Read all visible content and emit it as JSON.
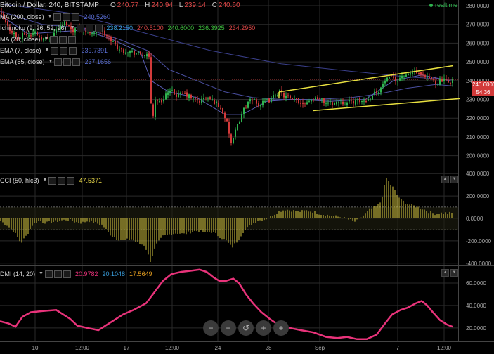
{
  "header": {
    "symbol": "Bitcoin / Dollar, 240, BITSTAMP",
    "o_label": "O",
    "o_value": "240.77",
    "h_label": "H",
    "h_value": "240.94",
    "l_label": "L",
    "l_value": "239.14",
    "c_label": "C",
    "c_value": "240.60",
    "realtime": "realtime"
  },
  "indicators": [
    {
      "name": "MA (200, close)",
      "values": [
        {
          "text": "240.5260",
          "color": "#5a6fd6"
        }
      ]
    },
    {
      "name": "Ichimoku (9, 26, 52, 26)",
      "values": [
        {
          "text": "238.2150",
          "color": "#3aa0e0"
        },
        {
          "text": "240.5100",
          "color": "#e04848"
        },
        {
          "text": "240.6000",
          "color": "#3fbf3f"
        },
        {
          "text": "236.3925",
          "color": "#3fbf3f"
        },
        {
          "text": "234.2950",
          "color": "#e04848"
        }
      ]
    },
    {
      "name": "MA (20, close)",
      "values": []
    },
    {
      "name": "EMA (7, close)",
      "values": [
        {
          "text": "239.7391",
          "color": "#5a6fd6"
        }
      ]
    },
    {
      "name": "EMA (55, close)",
      "values": [
        {
          "text": "237.1656",
          "color": "#5a6fd6"
        }
      ]
    }
  ],
  "cci": {
    "name": "CCI (50, hlc3)",
    "value": "47.5371",
    "value_color": "#e8d84a"
  },
  "dmi": {
    "name": "DMI (14, 20)",
    "values": [
      {
        "text": "20.9782",
        "color": "#e8337a"
      },
      {
        "text": "20.1048",
        "color": "#3aa0e0"
      },
      {
        "text": "17.5649",
        "color": "#e8a020"
      }
    ]
  },
  "price_marker": {
    "price": "240.6000",
    "countdown": "54:36"
  },
  "zoom_controls": [
    "−",
    "−",
    "↺",
    "+",
    "+"
  ],
  "colors": {
    "up": "#2fb44f",
    "down": "#d23a3a",
    "channel": "#e8e040",
    "ma": "#3a3f8a",
    "cci": "#d8c840",
    "dmi": "#e8337a",
    "grid": "#2a2a2a"
  },
  "chart_data": [
    {
      "type": "candlestick",
      "title": "Bitcoin / Dollar, 240, BITSTAMP",
      "ylim": [
        192,
        283
      ],
      "y_ticks": [
        "280.0000",
        "270.0000",
        "260.0000",
        "250.0000",
        "240.0000",
        "230.0000",
        "220.0000",
        "210.0000",
        "200.0000"
      ],
      "x_ticks": [
        "10",
        "12:00",
        "17",
        "12:00",
        "24",
        "28",
        "Sep",
        "7",
        "12:00"
      ],
      "close_path": [
        [
          0,
          276
        ],
        [
          6,
          272
        ],
        [
          12,
          268
        ],
        [
          18,
          266
        ],
        [
          22,
          264
        ],
        [
          26,
          262
        ],
        [
          34,
          265
        ],
        [
          42,
          264
        ],
        [
          50,
          266
        ],
        [
          58,
          263
        ],
        [
          66,
          262
        ],
        [
          74,
          264
        ],
        [
          82,
          268
        ],
        [
          88,
          269
        ],
        [
          92,
          271
        ],
        [
          96,
          270
        ],
        [
          102,
          267
        ],
        [
          110,
          268
        ],
        [
          118,
          267
        ],
        [
          126,
          266
        ],
        [
          134,
          266
        ],
        [
          142,
          267
        ],
        [
          150,
          264
        ],
        [
          158,
          262
        ],
        [
          166,
          258
        ],
        [
          174,
          256
        ],
        [
          182,
          256
        ],
        [
          190,
          255
        ],
        [
          198,
          254
        ],
        [
          206,
          254
        ],
        [
          212,
          252
        ],
        [
          215,
          228
        ],
        [
          218,
          222
        ],
        [
          222,
          232
        ],
        [
          226,
          228
        ],
        [
          230,
          229
        ],
        [
          236,
          233
        ],
        [
          244,
          234
        ],
        [
          252,
          232
        ],
        [
          260,
          233
        ],
        [
          268,
          232
        ],
        [
          276,
          230
        ],
        [
          284,
          229
        ],
        [
          292,
          231
        ],
        [
          300,
          230
        ],
        [
          308,
          228
        ],
        [
          316,
          224
        ],
        [
          322,
          219
        ],
        [
          326,
          212
        ],
        [
          330,
          205
        ],
        [
          334,
          212
        ],
        [
          338,
          216
        ],
        [
          342,
          220
        ],
        [
          346,
          224
        ],
        [
          350,
          227
        ],
        [
          356,
          229
        ],
        [
          362,
          230
        ],
        [
          368,
          227
        ],
        [
          374,
          228
        ],
        [
          380,
          229
        ],
        [
          386,
          230
        ],
        [
          392,
          233
        ],
        [
          398,
          234
        ],
        [
          404,
          232
        ],
        [
          410,
          231
        ],
        [
          416,
          229
        ],
        [
          422,
          230
        ],
        [
          428,
          228
        ],
        [
          436,
          229
        ],
        [
          444,
          230
        ],
        [
          452,
          231
        ],
        [
          460,
          229
        ],
        [
          468,
          228
        ],
        [
          476,
          228
        ],
        [
          484,
          229
        ],
        [
          492,
          228
        ],
        [
          500,
          229
        ],
        [
          508,
          229
        ],
        [
          516,
          229
        ],
        [
          524,
          230
        ],
        [
          530,
          233
        ],
        [
          536,
          234
        ],
        [
          542,
          236
        ],
        [
          548,
          240
        ],
        [
          554,
          241
        ],
        [
          560,
          242
        ],
        [
          566,
          240
        ],
        [
          572,
          243
        ],
        [
          578,
          242
        ],
        [
          584,
          244
        ],
        [
          590,
          245
        ],
        [
          596,
          243
        ],
        [
          602,
          242
        ],
        [
          608,
          241
        ],
        [
          614,
          241
        ],
        [
          620,
          239
        ],
        [
          626,
          240
        ],
        [
          632,
          240
        ],
        [
          638,
          239
        ],
        [
          644,
          240.6
        ]
      ],
      "ema_7_path": [
        [
          0,
          275
        ],
        [
          40,
          265
        ],
        [
          80,
          266
        ],
        [
          120,
          267
        ],
        [
          160,
          262
        ],
        [
          200,
          255
        ],
        [
          215,
          240
        ],
        [
          240,
          234
        ],
        [
          280,
          231
        ],
        [
          320,
          222
        ],
        [
          345,
          222
        ],
        [
          380,
          229
        ],
        [
          420,
          230
        ],
        [
          470,
          229
        ],
        [
          520,
          230
        ],
        [
          560,
          240
        ],
        [
          600,
          243
        ],
        [
          644,
          239.7
        ]
      ],
      "ema_55_path": [
        [
          0,
          277
        ],
        [
          60,
          270
        ],
        [
          120,
          268
        ],
        [
          170,
          262
        ],
        [
          210,
          256
        ],
        [
          240,
          246
        ],
        [
          280,
          240
        ],
        [
          320,
          234
        ],
        [
          360,
          231
        ],
        [
          400,
          230
        ],
        [
          450,
          230
        ],
        [
          500,
          231
        ],
        [
          540,
          233
        ],
        [
          580,
          236
        ],
        [
          620,
          238
        ],
        [
          644,
          237.2
        ]
      ],
      "ma_200_path": [
        [
          0,
          281
        ],
        [
          100,
          276
        ],
        [
          200,
          266
        ],
        [
          300,
          256
        ],
        [
          400,
          249
        ],
        [
          500,
          245
        ],
        [
          580,
          242
        ],
        [
          644,
          240.5
        ]
      ],
      "channel_upper": [
        [
          397,
          234
        ],
        [
          645,
          248
        ]
      ],
      "channel_lower": [
        [
          445,
          224
        ],
        [
          655,
          230.5
        ]
      ],
      "last_price": 240.6
    },
    {
      "type": "bar",
      "title": "CCI (50, hlc3)",
      "ylim": [
        -420,
        420
      ],
      "y_ticks": [
        "400.0000",
        "200.0000",
        "0.0000",
        "-200.0000",
        "-400.0000"
      ],
      "bands": [
        100,
        -100
      ],
      "path": [
        [
          0,
          -20
        ],
        [
          10,
          -60
        ],
        [
          20,
          -120
        ],
        [
          30,
          -220
        ],
        [
          38,
          -150
        ],
        [
          46,
          -60
        ],
        [
          56,
          -20
        ],
        [
          66,
          -40
        ],
        [
          76,
          -30
        ],
        [
          86,
          -20
        ],
        [
          96,
          -10
        ],
        [
          106,
          -30
        ],
        [
          116,
          -40
        ],
        [
          126,
          -20
        ],
        [
          136,
          -40
        ],
        [
          146,
          -60
        ],
        [
          156,
          -140
        ],
        [
          166,
          -180
        ],
        [
          176,
          -200
        ],
        [
          186,
          -180
        ],
        [
          196,
          -220
        ],
        [
          206,
          -240
        ],
        [
          214,
          -380
        ],
        [
          222,
          -240
        ],
        [
          232,
          -160
        ],
        [
          242,
          -140
        ],
        [
          252,
          -130
        ],
        [
          262,
          -140
        ],
        [
          272,
          -120
        ],
        [
          282,
          -110
        ],
        [
          292,
          -130
        ],
        [
          302,
          -120
        ],
        [
          312,
          -160
        ],
        [
          322,
          -200
        ],
        [
          330,
          -260
        ],
        [
          338,
          -200
        ],
        [
          346,
          -120
        ],
        [
          356,
          -60
        ],
        [
          366,
          -20
        ],
        [
          376,
          -10
        ],
        [
          386,
          20
        ],
        [
          396,
          60
        ],
        [
          406,
          80
        ],
        [
          416,
          70
        ],
        [
          426,
          60
        ],
        [
          436,
          70
        ],
        [
          446,
          60
        ],
        [
          456,
          40
        ],
        [
          466,
          30
        ],
        [
          476,
          20
        ],
        [
          486,
          10
        ],
        [
          496,
          -10
        ],
        [
          506,
          -30
        ],
        [
          516,
          20
        ],
        [
          526,
          80
        ],
        [
          536,
          110
        ],
        [
          542,
          150
        ],
        [
          546,
          260
        ],
        [
          550,
          360
        ],
        [
          554,
          320
        ],
        [
          560,
          270
        ],
        [
          566,
          200
        ],
        [
          572,
          160
        ],
        [
          580,
          130
        ],
        [
          590,
          110
        ],
        [
          600,
          90
        ],
        [
          610,
          60
        ],
        [
          620,
          40
        ],
        [
          630,
          50
        ],
        [
          640,
          47.5
        ]
      ],
      "value": 47.5371
    },
    {
      "type": "line",
      "title": "DMI (14, 20)",
      "ylim": [
        8,
        75
      ],
      "y_ticks": [
        "60.0000",
        "40.0000",
        "20.0000"
      ],
      "path": [
        [
          0,
          26
        ],
        [
          12,
          24
        ],
        [
          22,
          21
        ],
        [
          32,
          30
        ],
        [
          44,
          34
        ],
        [
          60,
          35
        ],
        [
          80,
          36
        ],
        [
          90,
          32
        ],
        [
          100,
          28
        ],
        [
          110,
          22
        ],
        [
          124,
          20
        ],
        [
          140,
          18
        ],
        [
          160,
          26
        ],
        [
          175,
          32
        ],
        [
          190,
          36
        ],
        [
          208,
          42
        ],
        [
          220,
          52
        ],
        [
          232,
          62
        ],
        [
          244,
          68
        ],
        [
          258,
          70
        ],
        [
          272,
          71
        ],
        [
          284,
          72
        ],
        [
          294,
          70
        ],
        [
          304,
          65
        ],
        [
          312,
          62
        ],
        [
          322,
          62
        ],
        [
          332,
          64
        ],
        [
          340,
          60
        ],
        [
          350,
          50
        ],
        [
          360,
          42
        ],
        [
          372,
          34
        ],
        [
          384,
          28
        ],
        [
          398,
          22
        ],
        [
          412,
          20
        ],
        [
          428,
          18
        ],
        [
          446,
          16
        ],
        [
          464,
          12
        ],
        [
          480,
          11
        ],
        [
          494,
          12
        ],
        [
          508,
          10
        ],
        [
          522,
          10
        ],
        [
          536,
          14
        ],
        [
          548,
          24
        ],
        [
          558,
          32
        ],
        [
          570,
          36
        ],
        [
          580,
          38
        ],
        [
          592,
          42
        ],
        [
          600,
          44
        ],
        [
          608,
          40
        ],
        [
          616,
          34
        ],
        [
          626,
          27
        ],
        [
          636,
          23
        ],
        [
          644,
          21
        ]
      ],
      "value": 20.9782
    }
  ]
}
